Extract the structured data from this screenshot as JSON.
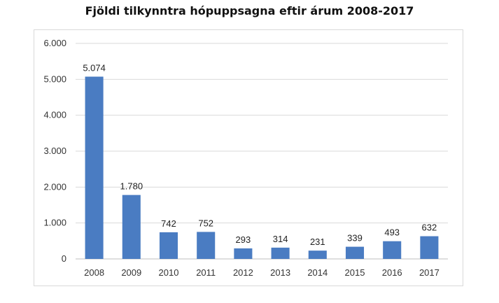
{
  "chart_data": {
    "type": "bar",
    "title": "Fjöldi tilkynntra hópuppsagna eftir árum 2008-2017",
    "categories": [
      "2008",
      "2009",
      "2010",
      "2011",
      "2012",
      "2013",
      "2014",
      "2015",
      "2016",
      "2017"
    ],
    "values": [
      5074,
      1780,
      742,
      752,
      293,
      314,
      231,
      339,
      493,
      632
    ],
    "value_labels": [
      "5.074",
      "1.780",
      "742",
      "752",
      "293",
      "314",
      "231",
      "339",
      "493",
      "632"
    ],
    "y_ticks": [
      "0",
      "1.000",
      "2.000",
      "3.000",
      "4.000",
      "5.000",
      "6.000"
    ],
    "ylim": [
      0,
      6000
    ],
    "grid": true,
    "legend": "none",
    "bar_color": "#4a7cc2",
    "grid_color": "#d9d9d9"
  }
}
